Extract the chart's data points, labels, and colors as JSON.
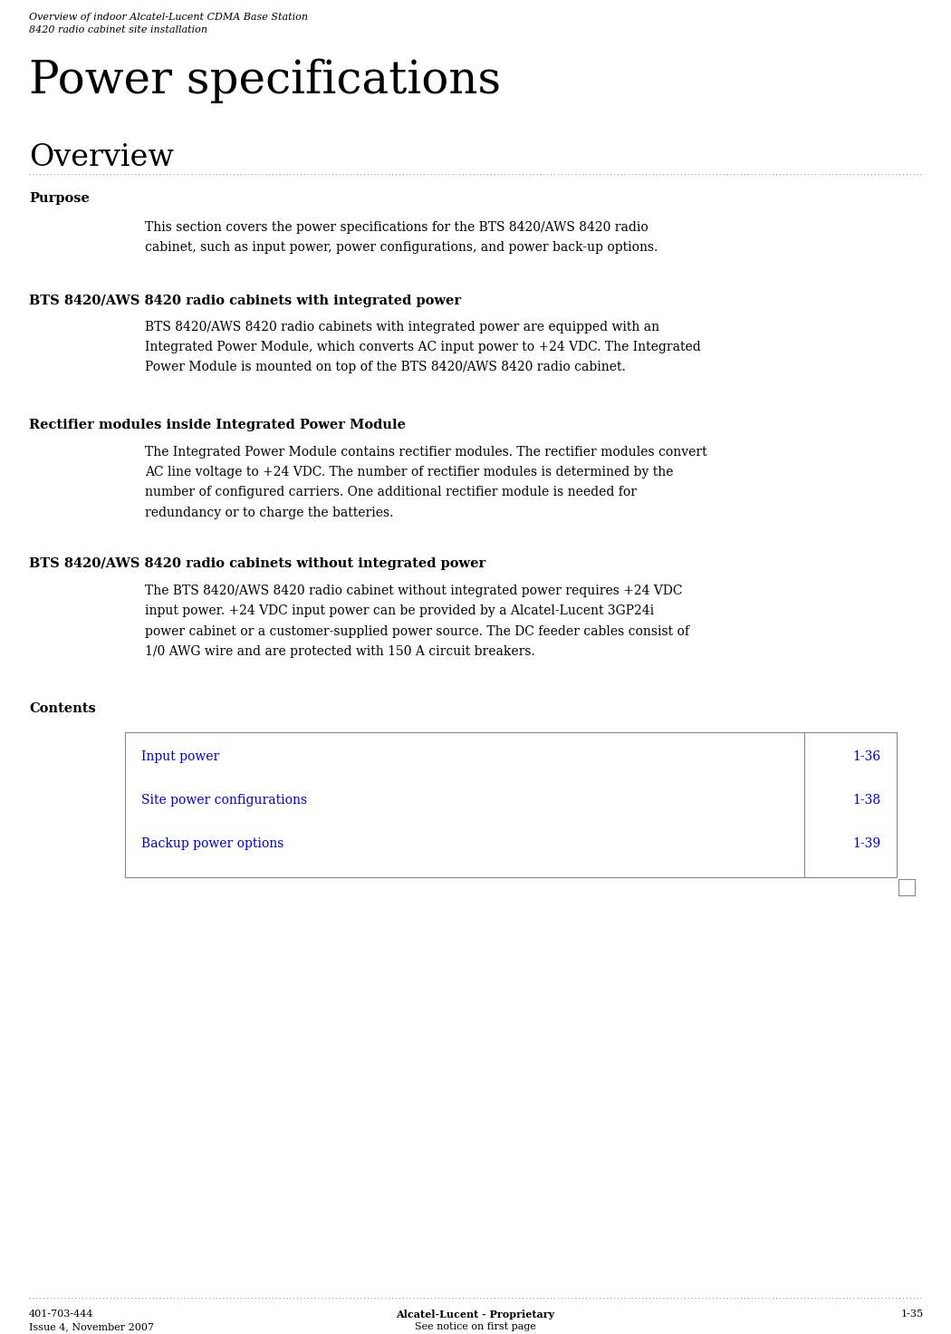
{
  "bg_color": "#ffffff",
  "header_line1": "Overview of indoor Alcatel-Lucent CDMA Base Station",
  "header_line2": "8420 radio cabinet site installation",
  "main_title": "Power specifications",
  "section_title": "Overview",
  "purpose_label": "Purpose",
  "purpose_text": "This section covers the power specifications for the BTS 8420/AWS 8420 radio\ncabinet, such as input power, power configurations, and power back-up options.",
  "section2_label": "BTS 8420/AWS 8420 radio cabinets with integrated power",
  "section2_text": "BTS 8420/AWS 8420 radio cabinets with integrated power are equipped with an\nIntegrated Power Module, which converts AC input power to +24 VDC. The Integrated\nPower Module is mounted on top of the BTS 8420/AWS 8420 radio cabinet.",
  "section3_label": "Rectifier modules inside Integrated Power Module",
  "section3_text": "The Integrated Power Module contains rectifier modules. The rectifier modules convert\nAC line voltage to +24 VDC. The number of rectifier modules is determined by the\nnumber of configured carriers. One additional rectifier module is needed for\nredundancy or to charge the batteries.",
  "section4_label": "BTS 8420/AWS 8420 radio cabinets without integrated power",
  "section4_text": "The BTS 8420/AWS 8420 radio cabinet without integrated power requires +24 VDC\ninput power. +24 VDC input power can be provided by a Alcatel-Lucent 3GP24i\npower cabinet or a customer-supplied power source. The DC feeder cables consist of\n1/0 AWG wire and are protected with 150 A circuit breakers.",
  "contents_label": "Contents",
  "contents_items": [
    {
      "text": "Input power",
      "page": "1-36"
    },
    {
      "text": "Site power configurations",
      "page": "1-38"
    },
    {
      "text": "Backup power options",
      "page": "1-39"
    }
  ],
  "footer_left1": "401-703-444",
  "footer_left2": "Issue 4, November 2007",
  "footer_center1": "Alcatel-Lucent - Proprietary",
  "footer_center2": "See notice on first page",
  "footer_right": "1-35",
  "text_color": "#000000",
  "blue_color": "#0000cc",
  "table_border_color": "#888888",
  "dotted_color": "#999999"
}
